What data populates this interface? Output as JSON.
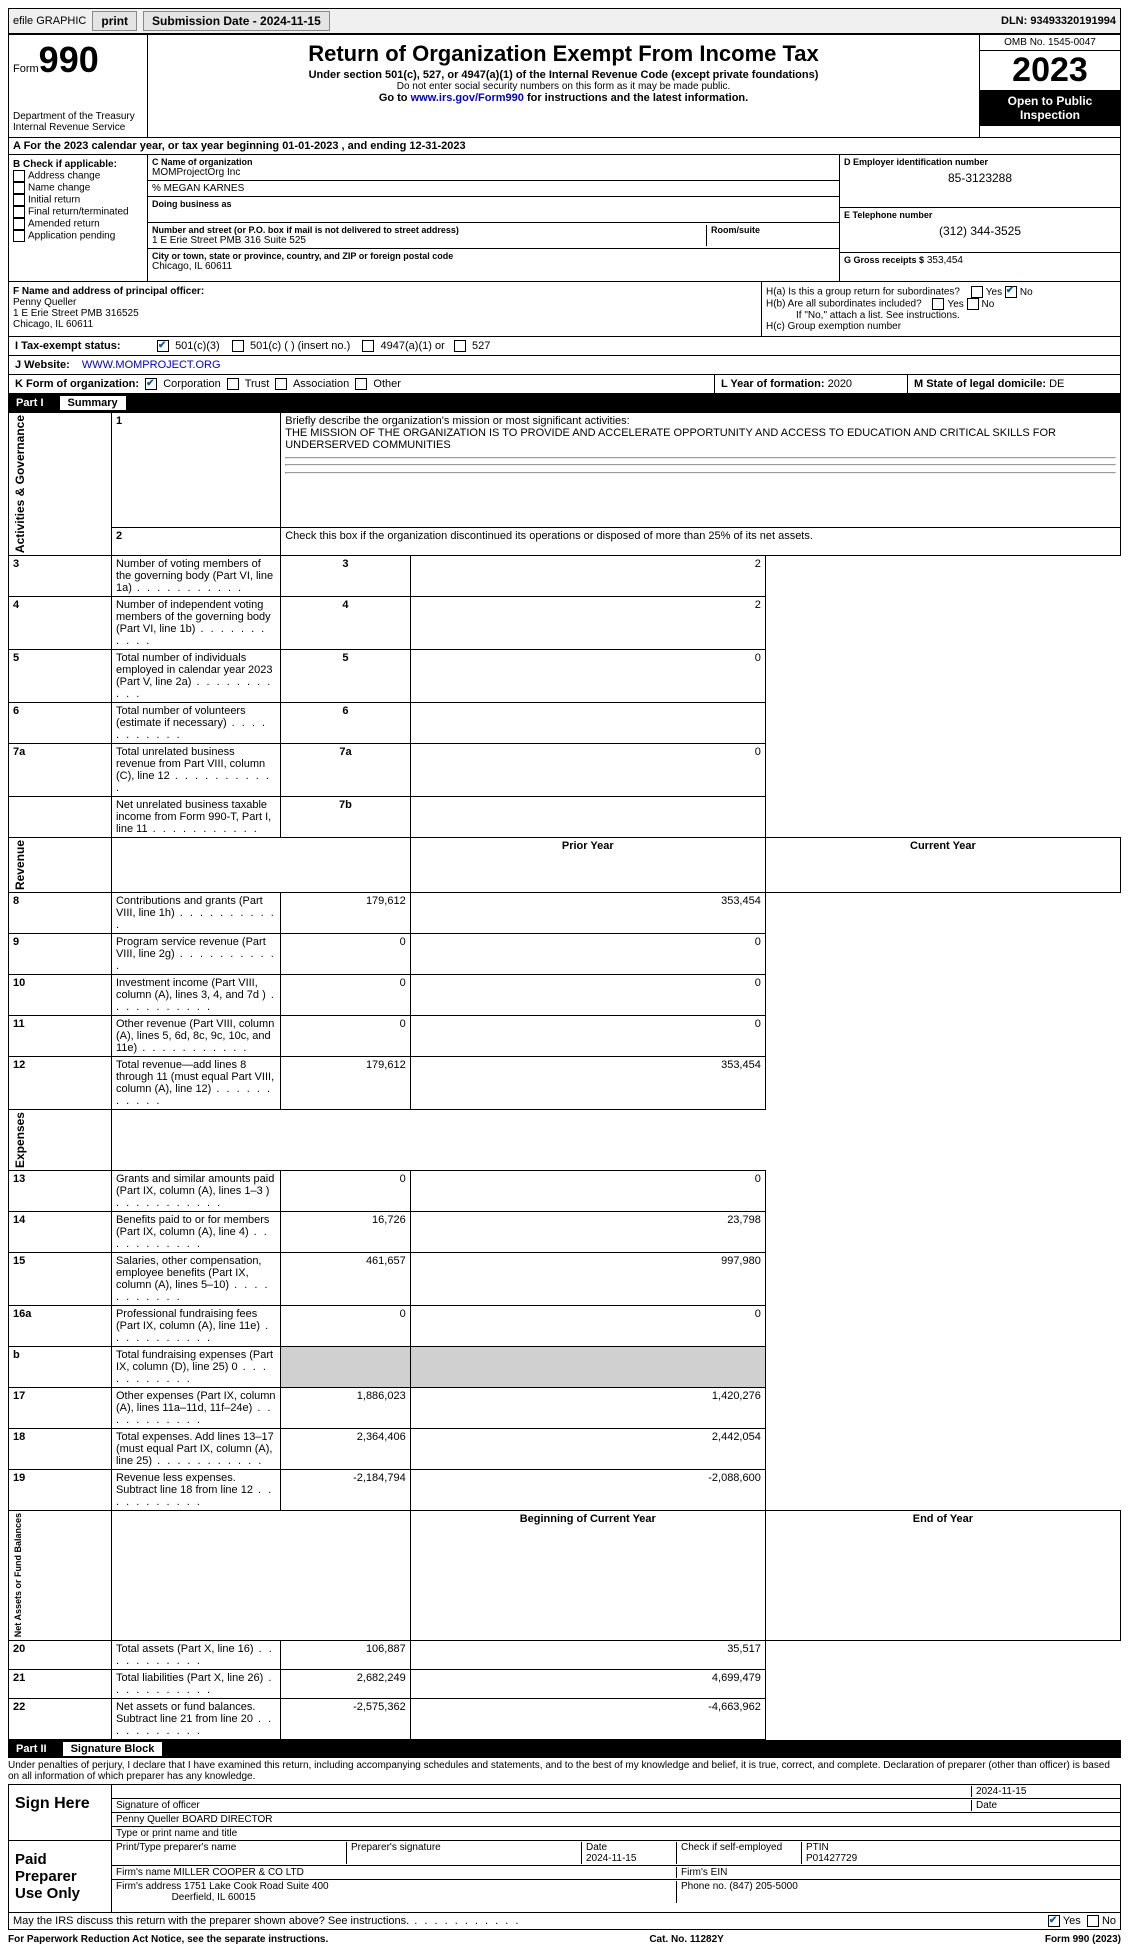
{
  "topbar": {
    "efile": "efile GRAPHIC",
    "print": "print",
    "submission": "Submission Date - 2024-11-15",
    "dln_label": "DLN:",
    "dln": "93493320191994"
  },
  "header": {
    "form_label": "Form",
    "form_no": "990",
    "dept": "Department of the Treasury",
    "irs": "Internal Revenue Service",
    "title": "Return of Organization Exempt From Income Tax",
    "sub1": "Under section 501(c), 527, or 4947(a)(1) of the Internal Revenue Code (except private foundations)",
    "sub2": "Do not enter social security numbers on this form as it may be made public.",
    "sub3_a": "Go to ",
    "sub3_link": "www.irs.gov/Form990",
    "sub3_b": " for instructions and the latest information.",
    "omb": "OMB No. 1545-0047",
    "year": "2023",
    "open": "Open to Public Inspection"
  },
  "row_a": "A For the 2023 calendar year, or tax year beginning 01-01-2023    , and ending 12-31-2023",
  "box_b": {
    "title": "B Check if applicable:",
    "items": [
      "Address change",
      "Name change",
      "Initial return",
      "Final return/terminated",
      "Amended return",
      "Application pending"
    ]
  },
  "box_c": {
    "name_label": "C Name of organization",
    "name": "MOMProjectOrg Inc",
    "care_of": "% MEGAN KARNES",
    "dba_label": "Doing business as",
    "street_label": "Number and street (or P.O. box if mail is not delivered to street address)",
    "street": "1 E Erie Street PMB 316 Suite 525",
    "room_label": "Room/suite",
    "city_label": "City or town, state or province, country, and ZIP or foreign postal code",
    "city": "Chicago, IL  60611"
  },
  "box_d": {
    "label": "D Employer identification number",
    "ein": "85-3123288",
    "phone_label": "E Telephone number",
    "phone": "(312) 344-3525",
    "gross_label": "G Gross receipts $",
    "gross": "353,454"
  },
  "box_f": {
    "label": "F  Name and address of principal officer:",
    "name": "Penny Queller",
    "street": "1 E Erie Street PMB 316525",
    "city": "Chicago, IL  60611"
  },
  "box_h": {
    "a": "H(a)  Is this a group return for subordinates?",
    "b": "H(b)  Are all subordinates included?",
    "b_note": "If \"No,\" attach a list. See instructions.",
    "c": "H(c)  Group exemption number ",
    "yes": "Yes",
    "no": "No"
  },
  "tax_status": {
    "label": "I   Tax-exempt status:",
    "c3": "501(c)(3)",
    "c": "501(c) (  ) (insert no.)",
    "a1": "4947(a)(1) or",
    "s527": "527"
  },
  "website": {
    "label": "J   Website: ",
    "url": "WWW.MOMPROJECT.ORG"
  },
  "row_k": {
    "label": "K Form of organization:",
    "corp": "Corporation",
    "trust": "Trust",
    "assoc": "Association",
    "other": "Other",
    "l_label": "L Year of formation:",
    "l_val": "2020",
    "m_label": "M State of legal domicile:",
    "m_val": "DE"
  },
  "part1": {
    "num": "Part I",
    "title": "Summary"
  },
  "summary": {
    "line1_label": "Briefly describe the organization's mission or most significant activities:",
    "line1_text": "THE MISSION OF THE ORGANIZATION IS TO PROVIDE AND ACCELERATE OPPORTUNITY AND ACCESS TO EDUCATION AND CRITICAL SKILLS FOR UNDERSERVED COMMUNITIES",
    "line2": "Check this box       if the organization discontinued its operations or disposed of more than 25% of its net assets.",
    "sideA": "Activities & Governance",
    "sideR": "Revenue",
    "sideE": "Expenses",
    "sideN": "Net Assets or Fund Balances",
    "rows_gov": [
      {
        "n": "3",
        "t": "Number of voting members of the governing body (Part VI, line 1a)",
        "box": "3",
        "v": "2"
      },
      {
        "n": "4",
        "t": "Number of independent voting members of the governing body (Part VI, line 1b)",
        "box": "4",
        "v": "2"
      },
      {
        "n": "5",
        "t": "Total number of individuals employed in calendar year 2023 (Part V, line 2a)",
        "box": "5",
        "v": "0"
      },
      {
        "n": "6",
        "t": "Total number of volunteers (estimate if necessary)",
        "box": "6",
        "v": ""
      },
      {
        "n": "7a",
        "t": "Total unrelated business revenue from Part VIII, column (C), line 12",
        "box": "7a",
        "v": "0"
      },
      {
        "n": "",
        "t": "Net unrelated business taxable income from Form 990-T, Part I, line 11",
        "box": "7b",
        "v": ""
      }
    ],
    "hdr_prior": "Prior Year",
    "hdr_curr": "Current Year",
    "rows_rev": [
      {
        "n": "8",
        "t": "Contributions and grants (Part VIII, line 1h)",
        "p": "179,612",
        "c": "353,454"
      },
      {
        "n": "9",
        "t": "Program service revenue (Part VIII, line 2g)",
        "p": "0",
        "c": "0"
      },
      {
        "n": "10",
        "t": "Investment income (Part VIII, column (A), lines 3, 4, and 7d )",
        "p": "0",
        "c": "0"
      },
      {
        "n": "11",
        "t": "Other revenue (Part VIII, column (A), lines 5, 6d, 8c, 9c, 10c, and 11e)",
        "p": "0",
        "c": "0"
      },
      {
        "n": "12",
        "t": "Total revenue—add lines 8 through 11 (must equal Part VIII, column (A), line 12)",
        "p": "179,612",
        "c": "353,454"
      }
    ],
    "rows_exp": [
      {
        "n": "13",
        "t": "Grants and similar amounts paid (Part IX, column (A), lines 1–3 )",
        "p": "0",
        "c": "0"
      },
      {
        "n": "14",
        "t": "Benefits paid to or for members (Part IX, column (A), line 4)",
        "p": "16,726",
        "c": "23,798"
      },
      {
        "n": "15",
        "t": "Salaries, other compensation, employee benefits (Part IX, column (A), lines 5–10)",
        "p": "461,657",
        "c": "997,980"
      },
      {
        "n": "16a",
        "t": "Professional fundraising fees (Part IX, column (A), line 11e)",
        "p": "0",
        "c": "0"
      },
      {
        "n": "b",
        "t": "Total fundraising expenses (Part IX, column (D), line 25) 0",
        "p": "shade",
        "c": "shade"
      },
      {
        "n": "17",
        "t": "Other expenses (Part IX, column (A), lines 11a–11d, 11f–24e)",
        "p": "1,886,023",
        "c": "1,420,276"
      },
      {
        "n": "18",
        "t": "Total expenses. Add lines 13–17 (must equal Part IX, column (A), line 25)",
        "p": "2,364,406",
        "c": "2,442,054"
      },
      {
        "n": "19",
        "t": "Revenue less expenses. Subtract line 18 from line 12",
        "p": "-2,184,794",
        "c": "-2,088,600"
      }
    ],
    "hdr_beg": "Beginning of Current Year",
    "hdr_end": "End of Year",
    "rows_na": [
      {
        "n": "20",
        "t": "Total assets (Part X, line 16)",
        "p": "106,887",
        "c": "35,517"
      },
      {
        "n": "21",
        "t": "Total liabilities (Part X, line 26)",
        "p": "2,682,249",
        "c": "4,699,479"
      },
      {
        "n": "22",
        "t": "Net assets or fund balances. Subtract line 21 from line 20",
        "p": "-2,575,362",
        "c": "-4,663,962"
      }
    ]
  },
  "part2": {
    "num": "Part II",
    "title": "Signature Block"
  },
  "sig": {
    "penalty": "Under penalties of perjury, I declare that I have examined this return, including accompanying schedules and statements, and to the best of my knowledge and belief, it is true, correct, and complete. Declaration of preparer (other than officer) is based on all information of which preparer has any knowledge.",
    "sign_here": "Sign Here",
    "sig_officer_lbl": "Signature of officer",
    "sig_date": "2024-11-15",
    "date_lbl": "Date",
    "officer_name": "Penny Queller  BOARD DIRECTOR",
    "officer_name_lbl": "Type or print name and title",
    "paid": "Paid Preparer Use Only",
    "prep_name_lbl": "Print/Type preparer's name",
    "prep_sig_lbl": "Preparer's signature",
    "prep_date_lbl": "Date",
    "prep_date": "2024-11-15",
    "check_self": "Check       if self-employed",
    "ptin_lbl": "PTIN",
    "ptin": "P01427729",
    "firm_name_lbl": "Firm's name    ",
    "firm_name": "MILLER COOPER & CO LTD",
    "firm_ein_lbl": "Firm's EIN ",
    "firm_addr_lbl": "Firm's address ",
    "firm_addr1": "1751 Lake Cook Road Suite 400",
    "firm_addr2": "Deerfield, IL  60015",
    "firm_phone_lbl": "Phone no.",
    "firm_phone": "(847) 205-5000",
    "discuss": "May the IRS discuss this return with the preparer shown above? See instructions."
  },
  "footer": {
    "pra": "For Paperwork Reduction Act Notice, see the separate instructions.",
    "cat": "Cat. No. 11282Y",
    "form": "Form 990 (2023)"
  }
}
